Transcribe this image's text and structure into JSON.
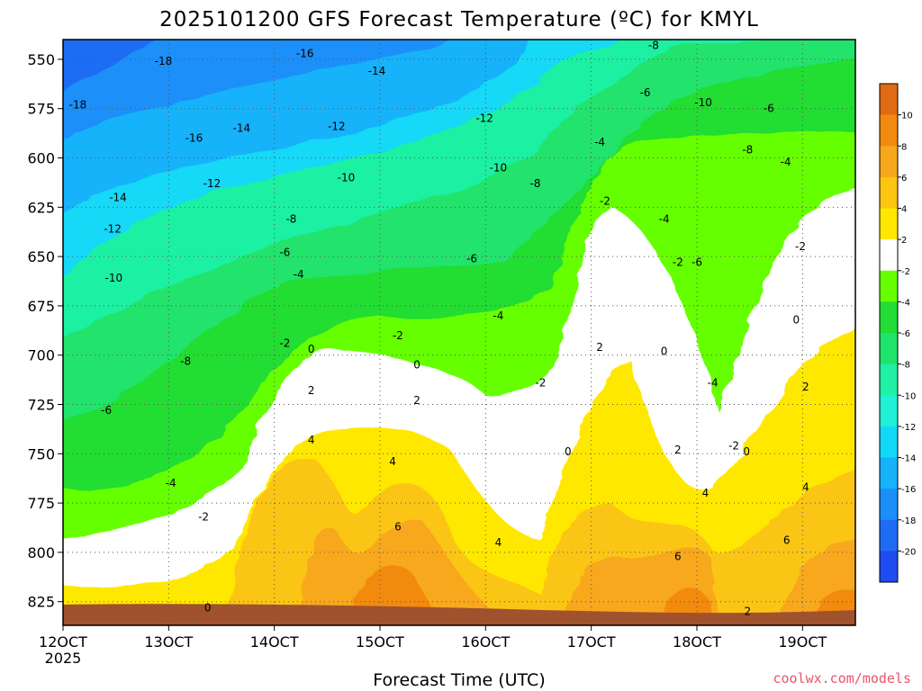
{
  "chart_data": {
    "type": "heatmap",
    "title": "2025101200 GFS Forecast Temperature (ºC) for KMYL",
    "xlabel": "Forecast Time (UTC)",
    "ylabel": "",
    "x_ticks": [
      "12OCT",
      "13OCT",
      "14OCT",
      "15OCT",
      "16OCT",
      "17OCT",
      "18OCT",
      "19OCT"
    ],
    "x_tick_sub": "2025",
    "y_ticks": [
      550,
      575,
      600,
      625,
      650,
      675,
      700,
      725,
      750,
      775,
      800,
      825
    ],
    "y_range_hpa": [
      837,
      540
    ],
    "x_range_days": [
      12.0,
      19.5
    ],
    "colorbar": {
      "ticks": [
        10,
        8,
        6,
        4,
        2,
        -2,
        -4,
        -6,
        -8,
        -10,
        -12,
        -14,
        -16,
        -18,
        -20
      ],
      "colors": [
        "#e06b12",
        "#f28a10",
        "#f7a81a",
        "#fbc512",
        "#ffe800",
        "#ffffff",
        "#66ff00",
        "#22dd33",
        "#20e36c",
        "#1ff0a3",
        "#1ff0d6",
        "#12d8f7",
        "#16b2fa",
        "#1a8ff9",
        "#1f6cf4",
        "#1f4cf0"
      ]
    },
    "terrain_color": "#a0522d",
    "contour_labels": [
      {
        "v": "-18",
        "d": 12.14,
        "p": 573
      },
      {
        "v": "-18",
        "d": 12.95,
        "p": 551
      },
      {
        "v": "-16",
        "d": 13.24,
        "p": 590
      },
      {
        "v": "-16",
        "d": 14.29,
        "p": 547
      },
      {
        "v": "-14",
        "d": 12.52,
        "p": 620
      },
      {
        "v": "-14",
        "d": 13.69,
        "p": 585
      },
      {
        "v": "-14",
        "d": 14.97,
        "p": 556
      },
      {
        "v": "-12",
        "d": 12.47,
        "p": 636
      },
      {
        "v": "-12",
        "d": 13.41,
        "p": 613
      },
      {
        "v": "-12",
        "d": 14.59,
        "p": 584
      },
      {
        "v": "-12",
        "d": 15.99,
        "p": 580
      },
      {
        "v": "-10",
        "d": 12.48,
        "p": 661
      },
      {
        "v": "-10",
        "d": 14.68,
        "p": 610
      },
      {
        "v": "-10",
        "d": 16.12,
        "p": 605
      },
      {
        "v": "-10",
        "d": 18.06,
        "p": 572
      },
      {
        "v": "-8",
        "d": 13.16,
        "p": 703
      },
      {
        "v": "-8",
        "d": 14.16,
        "p": 631
      },
      {
        "v": "-8",
        "d": 16.47,
        "p": 613
      },
      {
        "v": "-8",
        "d": 17.59,
        "p": 543
      },
      {
        "v": "-8",
        "d": 18.48,
        "p": 596
      },
      {
        "v": "-6",
        "d": 12.41,
        "p": 728
      },
      {
        "v": "-6",
        "d": 14.1,
        "p": 648
      },
      {
        "v": "-6",
        "d": 15.87,
        "p": 651
      },
      {
        "v": "-6",
        "d": 17.51,
        "p": 567
      },
      {
        "v": "-6",
        "d": 18.0,
        "p": 653
      },
      {
        "v": "-6",
        "d": 18.68,
        "p": 575
      },
      {
        "v": "-4",
        "d": 13.02,
        "p": 765
      },
      {
        "v": "-4",
        "d": 14.23,
        "p": 659
      },
      {
        "v": "-4",
        "d": 16.12,
        "p": 680
      },
      {
        "v": "-4",
        "d": 17.08,
        "p": 592
      },
      {
        "v": "-4",
        "d": 17.69,
        "p": 631
      },
      {
        "v": "-4",
        "d": 18.15,
        "p": 714
      },
      {
        "v": "-4",
        "d": 18.84,
        "p": 602
      },
      {
        "v": "-2",
        "d": 13.33,
        "p": 782
      },
      {
        "v": "-2",
        "d": 14.1,
        "p": 694
      },
      {
        "v": "-2",
        "d": 15.17,
        "p": 690
      },
      {
        "v": "-2",
        "d": 16.52,
        "p": 714
      },
      {
        "v": "-2",
        "d": 17.13,
        "p": 622
      },
      {
        "v": "-2",
        "d": 17.82,
        "p": 653
      },
      {
        "v": "-2",
        "d": 18.35,
        "p": 746
      },
      {
        "v": "-2",
        "d": 18.98,
        "p": 645
      },
      {
        "v": "0",
        "d": 13.37,
        "p": 828
      },
      {
        "v": "0",
        "d": 14.35,
        "p": 697
      },
      {
        "v": "0",
        "d": 15.35,
        "p": 705
      },
      {
        "v": "0",
        "d": 16.78,
        "p": 749
      },
      {
        "v": "0",
        "d": 17.69,
        "p": 698
      },
      {
        "v": "0",
        "d": 18.47,
        "p": 749
      },
      {
        "v": "0",
        "d": 18.94,
        "p": 682
      },
      {
        "v": "2",
        "d": 14.35,
        "p": 718
      },
      {
        "v": "2",
        "d": 15.35,
        "p": 723
      },
      {
        "v": "2",
        "d": 17.08,
        "p": 696
      },
      {
        "v": "2",
        "d": 17.82,
        "p": 748
      },
      {
        "v": "2",
        "d": 18.48,
        "p": 830
      },
      {
        "v": "2",
        "d": 19.03,
        "p": 716
      },
      {
        "v": "4",
        "d": 14.35,
        "p": 743
      },
      {
        "v": "4",
        "d": 15.12,
        "p": 754
      },
      {
        "v": "4",
        "d": 16.12,
        "p": 795
      },
      {
        "v": "4",
        "d": 18.08,
        "p": 770
      },
      {
        "v": "4",
        "d": 19.03,
        "p": 767
      },
      {
        "v": "6",
        "d": 15.17,
        "p": 787
      },
      {
        "v": "6",
        "d": 17.82,
        "p": 802
      },
      {
        "v": "6",
        "d": 18.85,
        "p": 794
      }
    ]
  },
  "credit": "coolwx.com/models"
}
